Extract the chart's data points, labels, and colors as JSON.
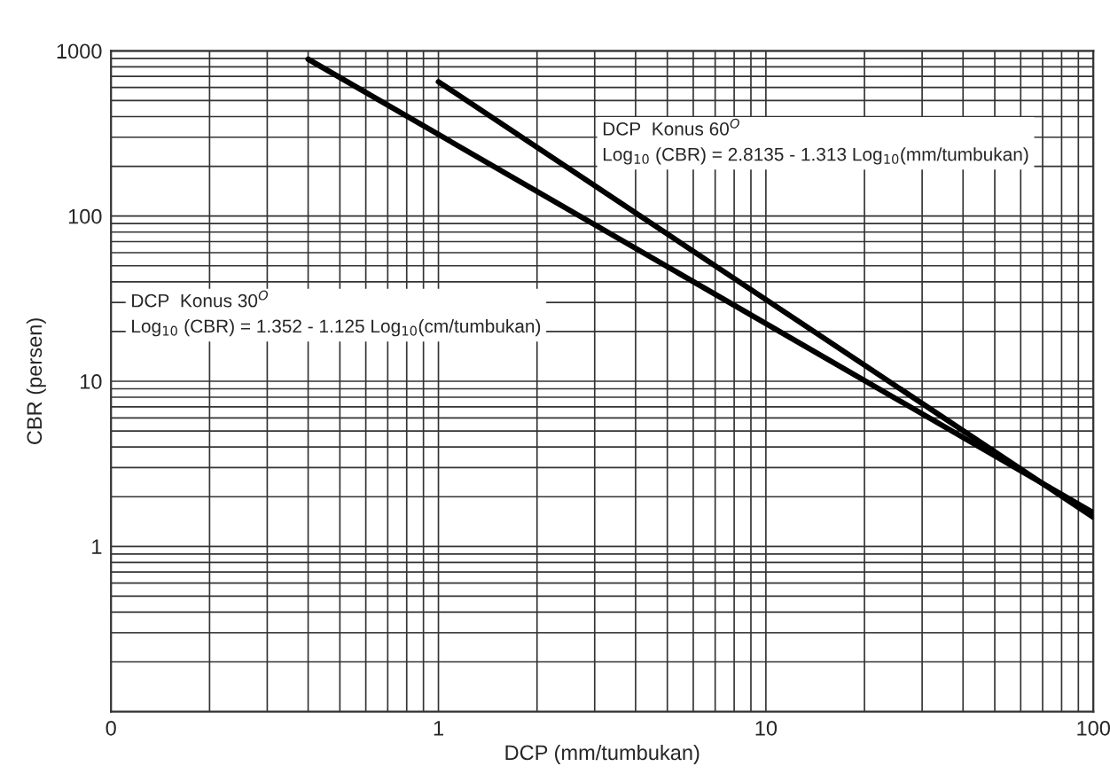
{
  "chart_data": {
    "type": "line",
    "xlabel": "DCP (mm/tumbukan)",
    "ylabel": "CBR (persen)",
    "log": "xy",
    "grid": true,
    "line_style": "solid",
    "marker": "none",
    "xlim": [
      0.1,
      100
    ],
    "xticks": [
      {
        "value": 0.1,
        "label": "0"
      },
      1,
      10,
      100
    ],
    "ylim": [
      0.1,
      1000
    ],
    "yticks": [
      1,
      10,
      100,
      1000
    ],
    "series": [
      {
        "color": "#000000",
        "x": [
          0.4,
          100
        ],
        "values": [
          890,
          1.6
        ]
      },
      {
        "color": "#000000",
        "x": [
          1,
          100
        ],
        "values": [
          650,
          1.5
        ]
      }
    ],
    "annotations": [
      "DCP  Konus 30$^{O}$\nLog$_{10}$ (CBR) = 1.352 - 1.125 Log$_{10}$(cm/tumbukan)",
      "DCP  Konus 60$^{O}$\nLog$_{10}$ (CBR) = 2.8135 - 1.313 Log$_{10}$(mm/tumbukan)"
    ]
  }
}
